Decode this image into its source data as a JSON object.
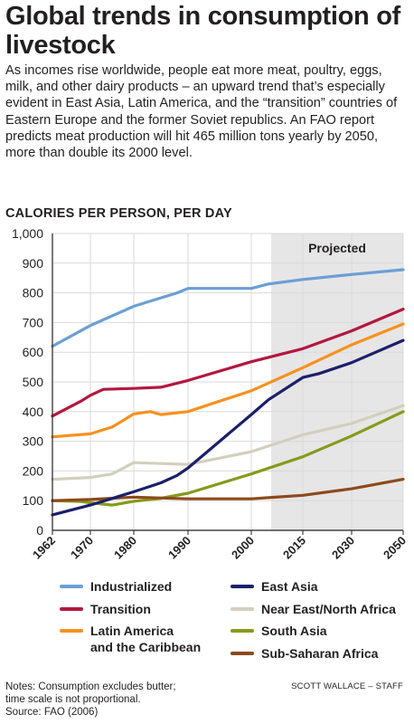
{
  "title": "Global trends in consumption of livestock",
  "intro": "As incomes rise worldwide, people eat more meat, poultry, eggs, milk, and other dairy products – an upward trend that’s especially evident in East Asia, Latin America, and the “transition” countries of Eastern Europe and the former Soviet republics. An FAO report predicts meat production will hit 465 million tons yearly by 2050, more than double its 2000 level.",
  "notes": {
    "line1": "Notes: Consumption excludes butter;",
    "line2": "time scale is not proportional.",
    "line3": "Source: FAO (2006)"
  },
  "credit": "SCOTT WALLACE – STAFF",
  "colors": {
    "projected_band": "#e6e6e6",
    "grid": "#d9d9d9",
    "axis": "#231f20"
  },
  "chart_data": {
    "type": "line",
    "ylabel": "CALORIES PER PERSON, PER DAY",
    "ylim": [
      0,
      1000
    ],
    "y_ticks": [
      "0",
      "100",
      "200",
      "300",
      "400",
      "500",
      "600",
      "700",
      "800",
      "900",
      "1,000"
    ],
    "y_tick_values": [
      0,
      100,
      200,
      300,
      400,
      500,
      600,
      700,
      800,
      900,
      1000
    ],
    "x_ticks": [
      "1962",
      "1970",
      "1980",
      "1990",
      "2000",
      "2015",
      "2030",
      "2050"
    ],
    "x_scale": "not proportional",
    "grid": true,
    "projected_label": "Projected",
    "projected_from": "2000",
    "legend_placement": "bottom",
    "series": [
      {
        "name": "Industrialized",
        "color": "#6a9fd4",
        "points": [
          [
            1962,
            620
          ],
          [
            1970,
            690
          ],
          [
            1980,
            755
          ],
          [
            1988,
            800
          ],
          [
            1990,
            815
          ],
          [
            1995,
            815
          ],
          [
            2000,
            815
          ],
          [
            2005,
            830
          ],
          [
            2015,
            845
          ],
          [
            2030,
            862
          ],
          [
            2050,
            878
          ]
        ]
      },
      {
        "name": "Transition",
        "color": "#b3173f",
        "points": [
          [
            1962,
            385
          ],
          [
            1968,
            435
          ],
          [
            1970,
            455
          ],
          [
            1973,
            475
          ],
          [
            1980,
            478
          ],
          [
            1985,
            482
          ],
          [
            1990,
            505
          ],
          [
            2000,
            568
          ],
          [
            2015,
            612
          ],
          [
            2030,
            672
          ],
          [
            2050,
            745
          ]
        ]
      },
      {
        "name": "Latin America and the Caribbean",
        "color": "#f6911e",
        "points": [
          [
            1962,
            315
          ],
          [
            1970,
            325
          ],
          [
            1975,
            348
          ],
          [
            1980,
            392
          ],
          [
            1983,
            400
          ],
          [
            1985,
            390
          ],
          [
            1990,
            400
          ],
          [
            2000,
            470
          ],
          [
            2015,
            548
          ],
          [
            2030,
            625
          ],
          [
            2050,
            695
          ]
        ]
      },
      {
        "name": "East Asia",
        "color": "#1b1f6b",
        "points": [
          [
            1962,
            52
          ],
          [
            1970,
            85
          ],
          [
            1980,
            130
          ],
          [
            1985,
            160
          ],
          [
            1988,
            185
          ],
          [
            1990,
            210
          ],
          [
            1995,
            300
          ],
          [
            2000,
            390
          ],
          [
            2005,
            440
          ],
          [
            2015,
            515
          ],
          [
            2020,
            528
          ],
          [
            2030,
            565
          ],
          [
            2050,
            640
          ]
        ]
      },
      {
        "name": "Near East/North Africa",
        "color": "#d3cfbe",
        "points": [
          [
            1962,
            172
          ],
          [
            1970,
            178
          ],
          [
            1975,
            190
          ],
          [
            1980,
            228
          ],
          [
            1990,
            222
          ],
          [
            2000,
            265
          ],
          [
            2015,
            322
          ],
          [
            2030,
            360
          ],
          [
            2050,
            420
          ]
        ]
      },
      {
        "name": "South Asia",
        "color": "#879a1b",
        "points": [
          [
            1962,
            100
          ],
          [
            1968,
            97
          ],
          [
            1970,
            93
          ],
          [
            1975,
            85
          ],
          [
            1980,
            98
          ],
          [
            1985,
            108
          ],
          [
            1990,
            125
          ],
          [
            2000,
            190
          ],
          [
            2015,
            248
          ],
          [
            2030,
            318
          ],
          [
            2050,
            400
          ]
        ]
      },
      {
        "name": "Sub-Saharan Africa",
        "color": "#8c4a1b",
        "points": [
          [
            1962,
            100
          ],
          [
            1970,
            104
          ],
          [
            1980,
            112
          ],
          [
            1990,
            106
          ],
          [
            2000,
            106
          ],
          [
            2005,
            110
          ],
          [
            2015,
            118
          ],
          [
            2030,
            140
          ],
          [
            2050,
            172
          ]
        ]
      }
    ]
  },
  "legend": [
    {
      "label": "Industrialized"
    },
    {
      "label": "Transition"
    },
    {
      "label1": "Latin America",
      "label2": "and the Caribbean"
    },
    {
      "label": "East Asia"
    },
    {
      "label": "Near East/North Africa"
    },
    {
      "label": "South Asia"
    },
    {
      "label": "Sub-Saharan Africa"
    }
  ]
}
